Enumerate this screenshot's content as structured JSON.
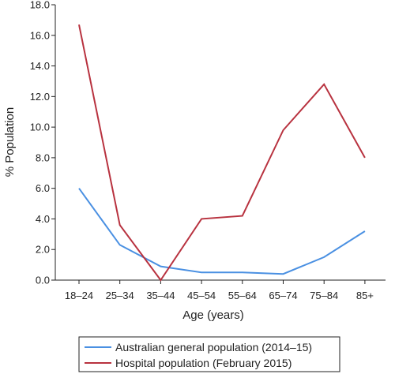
{
  "chart_data": {
    "type": "line",
    "title": "",
    "xlabel": "Age (years)",
    "ylabel": "% Population",
    "categories": [
      "18–24",
      "25–34",
      "35–44",
      "45–54",
      "55–64",
      "65–74",
      "75–84",
      "85+"
    ],
    "ylim": [
      0,
      18
    ],
    "yticks": [
      "0.0",
      "2.0",
      "4.0",
      "6.0",
      "8.0",
      "10.0",
      "12.0",
      "14.0",
      "16.0",
      "18.0"
    ],
    "grid": false,
    "legend_position": "bottom",
    "series": [
      {
        "name": "Australian general population (2014–15)",
        "color": "#4a90e2",
        "values": [
          6.0,
          2.3,
          0.9,
          0.5,
          0.5,
          0.4,
          1.5,
          3.2
        ]
      },
      {
        "name": "Hospital population (February 2015)",
        "color": "#b8323f",
        "values": [
          16.7,
          3.6,
          0.0,
          4.0,
          4.2,
          9.8,
          12.8,
          8.0
        ]
      }
    ]
  }
}
